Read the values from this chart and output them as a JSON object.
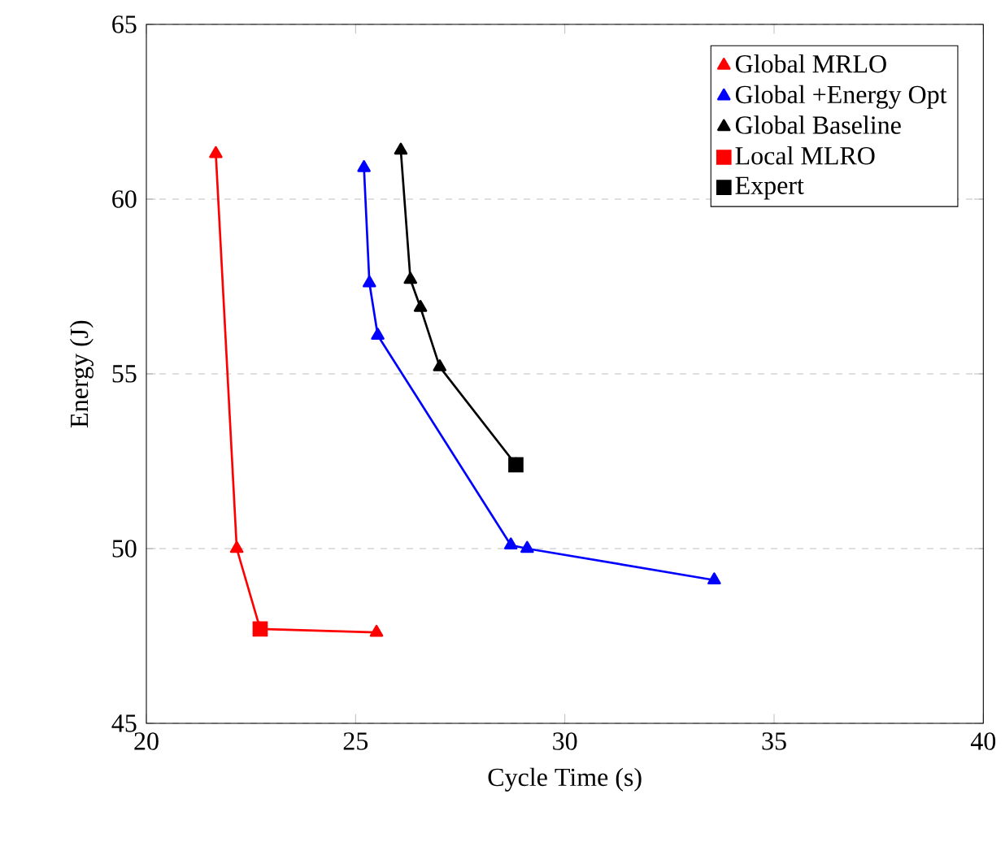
{
  "chart_data": {
    "type": "line",
    "xlabel": "Cycle Time (s)",
    "ylabel": "Energy (J)",
    "xlim": [
      20,
      40
    ],
    "ylim": [
      45,
      65
    ],
    "xticks": [
      20,
      25,
      30,
      35,
      40
    ],
    "yticks": [
      45,
      50,
      55,
      60,
      65
    ],
    "grid": "y",
    "legend": "top right",
    "line_style": "solid",
    "series": [
      {
        "name": "Global MRLO",
        "marker": "triangle",
        "color": "#ff0000",
        "x": [
          21.66,
          22.16,
          22.72,
          25.5
        ],
        "values": [
          61.3,
          50.0,
          47.7,
          47.6
        ]
      },
      {
        "name": "Global +Energy Opt",
        "marker": "triangle",
        "color": "#0000ff",
        "x": [
          25.2,
          25.33,
          25.53,
          28.71,
          29.1,
          33.57
        ],
        "values": [
          60.9,
          57.6,
          56.1,
          50.1,
          50.0,
          49.1
        ]
      },
      {
        "name": "Global Baseline",
        "marker": "triangle",
        "color": "#000000",
        "x": [
          26.08,
          26.31,
          26.55,
          27.01,
          28.83
        ],
        "values": [
          61.4,
          57.7,
          56.9,
          55.2,
          52.4
        ]
      },
      {
        "name": "Local MLRO",
        "type": "scatter",
        "marker": "square",
        "color": "#ff0000",
        "x": [
          22.72
        ],
        "values": [
          47.7
        ]
      },
      {
        "name": "Expert",
        "type": "scatter",
        "marker": "square",
        "color": "#000000",
        "x": [
          28.83
        ],
        "values": [
          52.4
        ]
      }
    ]
  }
}
